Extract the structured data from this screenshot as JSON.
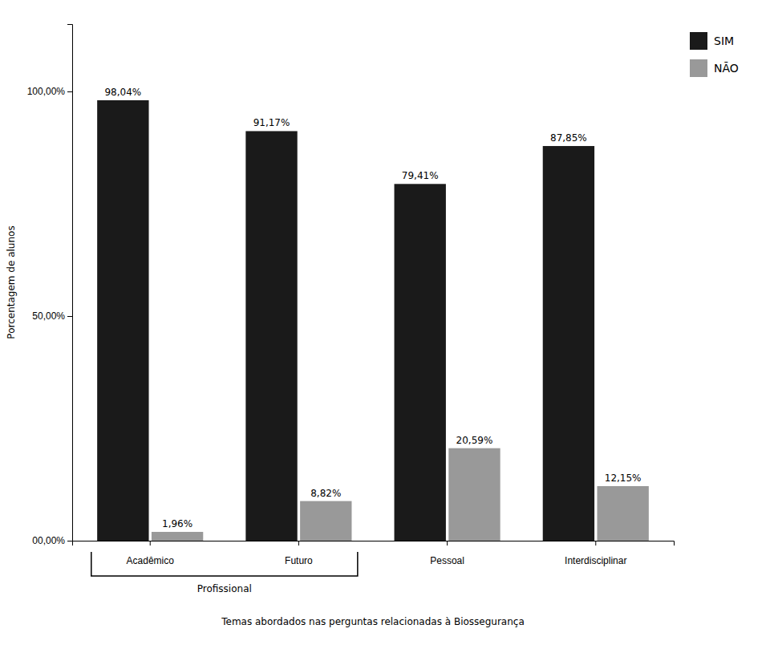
{
  "chart_data": {
    "type": "bar",
    "categories": [
      "Acadêmico",
      "Futuro",
      "Pessoal",
      "Interdisciplinar"
    ],
    "series": [
      {
        "name": "SIM",
        "color": "#1a1a1a",
        "values": [
          98.04,
          91.17,
          79.41,
          87.85
        ],
        "value_labels": [
          "98,04%",
          "91,17%",
          "79,41%",
          "87,85%"
        ]
      },
      {
        "name": "NÃO",
        "color": "#999999",
        "values": [
          1.96,
          8.82,
          20.59,
          12.15
        ],
        "value_labels": [
          "1,96%",
          "8,82%",
          "20,59%",
          "12,15%"
        ]
      }
    ],
    "ylabel": "Porcentagem de alunos",
    "xlabel": "Temas abordados nas perguntas relacionadas à Biossegurança",
    "annotations": [
      {
        "text": "Profissional",
        "span": [
          "Acadêmico",
          "Futuro"
        ]
      }
    ],
    "ylim": [
      0,
      115
    ],
    "yticks": [
      {
        "value": 0,
        "label": "00,00%"
      },
      {
        "value": 50,
        "label": "50,00%"
      },
      {
        "value": 100,
        "label": "100,00%"
      }
    ],
    "grid": false,
    "legend": "upper right",
    "data_labels": true
  }
}
